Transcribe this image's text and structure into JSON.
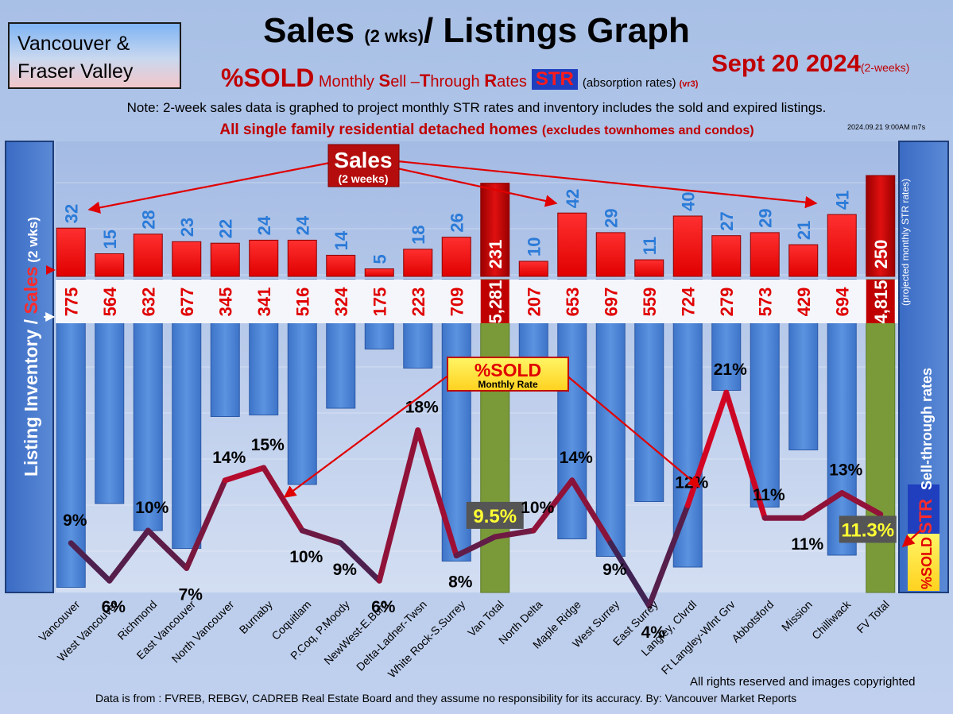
{
  "header": {
    "region_line1": "Vancouver &",
    "region_line2": "Fraser Valley",
    "title_main": "Sales ",
    "title_small": "(2 wks)",
    "title_rest": "/ Listings Graph",
    "subtitle_pct": "%SOLD",
    "subtitle_m": " Monthly ",
    "subtitle_S": "S",
    "subtitle_ell": "ell –",
    "subtitle_T": "T",
    "subtitle_hrough": "hrough ",
    "subtitle_R": "R",
    "subtitle_ates": "ates",
    "str_badge": "STR",
    "absorption": "(absorption rates)",
    "version": "(vr3)",
    "date": "Sept 20  2024",
    "date_small": "(2-weeks)",
    "note": "Note: 2-week sales data is graphed to project monthly STR rates and inventory includes the sold and expired listings.",
    "detached": "All single family residential detached homes ",
    "detached_small": "(excludes townhomes and condos)",
    "timestamp": "2024.09.21 9:00AM m7s"
  },
  "footer": {
    "copyright": "All rights reserved and  images copyrighted",
    "source": "Data is from : FVREB, REBGV, CADREB Real Estate Board and they assume no responsibility for its accuracy. By: Vancouver Market Reports"
  },
  "chart_data": {
    "type": "bar",
    "categories": [
      "Vancouver",
      "West Vancouver",
      "Richmond",
      "East Vancouver",
      "North Vancouver",
      "Burnaby",
      "Coquitlam",
      "P.Coq, P.Moody",
      "NewWest-E.Burn",
      "Delta-Ladner-Twsn",
      "White Rock-S.Surrey",
      "Van Total",
      "North Delta",
      "Maple Ridge",
      "West Surrey",
      "East Surrey",
      "Langley, Clvrdl",
      "Ft Langley-Wlnt Grv",
      "Abbotsford",
      "Mission",
      "Chilliwack",
      "FV Total"
    ],
    "series": [
      {
        "name": "Sales",
        "label": "(2 weeks)",
        "values": [
          32,
          15,
          28,
          23,
          22,
          24,
          24,
          14,
          5,
          18,
          26,
          231,
          10,
          42,
          29,
          11,
          40,
          27,
          29,
          21,
          41,
          250
        ],
        "labels": [
          "32",
          "15",
          "28",
          "23",
          "22",
          "24",
          "24",
          "14",
          "5",
          "18",
          "26",
          "231",
          "10",
          "42",
          "29",
          "11",
          "40",
          "27",
          "29",
          "21",
          "41",
          "250"
        ]
      },
      {
        "name": "Listing Inventory",
        "values": [
          775,
          564,
          632,
          677,
          345,
          341,
          516,
          324,
          175,
          223,
          709,
          5281,
          207,
          653,
          697,
          559,
          724,
          279,
          573,
          429,
          694,
          4815
        ],
        "labels": [
          "775",
          "564",
          "632",
          "677",
          "345",
          "341",
          "516",
          "324",
          "175",
          "223",
          "709",
          "5,281",
          "207",
          "653",
          "697",
          "559",
          "724",
          "279",
          "573",
          "429",
          "694",
          "4,815"
        ]
      },
      {
        "name": "%SOLD",
        "label": "Monthly Rate",
        "values": [
          9,
          6,
          10,
          7,
          14,
          15,
          10,
          9,
          6,
          18,
          8,
          9.5,
          10,
          14,
          9,
          4,
          12,
          21,
          11,
          11,
          13,
          11.3
        ],
        "labels": [
          "9%",
          "6%",
          "10%",
          "7%",
          "14%",
          "15%",
          "10%",
          "9%",
          "6%",
          "18%",
          "8%",
          "9.5%",
          "10%",
          "14%",
          "9%",
          "4%",
          "12%",
          "21%",
          "11%",
          "11%",
          "13%",
          "11.3%"
        ]
      }
    ],
    "ylabel_left_a": "Listing Inventory / ",
    "ylabel_left_b": "Sales",
    "ylabel_left_c": " (2  wks)",
    "ylabel_right_a": "%SOLD",
    "ylabel_right_b": "STR",
    "ylabel_right_c": " Sell-through rates",
    "ylabel_right_d": "(projected monthly STR rates)",
    "colors": {
      "sales": "#ff1a1a",
      "inventory": "#4f86d6",
      "totals": "#7a9a3a",
      "str_high": "#e8001c",
      "str_low": "#1b2a5e"
    }
  }
}
